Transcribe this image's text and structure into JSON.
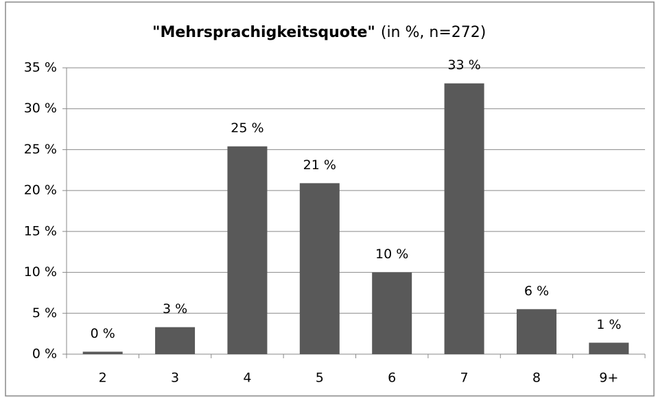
{
  "chart_data": {
    "type": "bar",
    "title": "\"Mehrsprachigkeitsquote\"",
    "subtitle": "(in %, n=272)",
    "categories": [
      "2",
      "3",
      "4",
      "5",
      "6",
      "7",
      "8",
      "9+"
    ],
    "values": [
      0.3,
      3.3,
      25.4,
      20.9,
      10.0,
      33.1,
      5.5,
      1.4
    ],
    "value_labels": [
      "0 %",
      "3 %",
      "25 %",
      "21 %",
      "10 %",
      "33 %",
      "6 %",
      "1 %"
    ],
    "color": "#595959",
    "ylim": [
      0,
      35
    ],
    "yticks": [
      {
        "value": 0,
        "label": "0 %"
      },
      {
        "value": 5,
        "label": "5 %"
      },
      {
        "value": 10,
        "label": "10 %"
      },
      {
        "value": 15,
        "label": "15 %"
      },
      {
        "value": 20,
        "label": "20 %"
      },
      {
        "value": 25,
        "label": "25 %"
      },
      {
        "value": 30,
        "label": "30 %"
      },
      {
        "value": 35,
        "label": "35 %"
      }
    ],
    "grid": true
  }
}
